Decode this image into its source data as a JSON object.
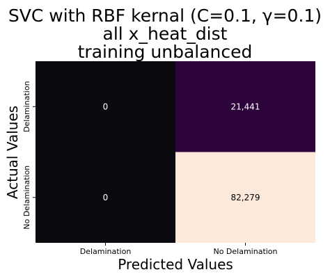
{
  "chart_data": {
    "type": "heatmap",
    "title_lines": [
      "SVC with RBF kernal (C=0.1, γ=0.1)",
      "all x_heat_dist",
      "training unbalanced"
    ],
    "xlabel": "Predicted Values",
    "ylabel": "Actual Values",
    "x_categories": [
      "Delamination",
      "No Delamination"
    ],
    "y_categories": [
      "Delamination",
      "No Delamination"
    ],
    "values": [
      [
        0,
        21441
      ],
      [
        0,
        82279
      ]
    ],
    "cell_labels": [
      [
        "0",
        "21,441"
      ],
      [
        "0",
        "82,279"
      ]
    ],
    "colormap": "magma",
    "colorbar": false,
    "colors": {
      "low": "#0b0b0f",
      "mid": "#4c0066",
      "high": "#fbeadc",
      "text_on_dark": "#ffffff",
      "text_on_light": "#000000"
    }
  }
}
